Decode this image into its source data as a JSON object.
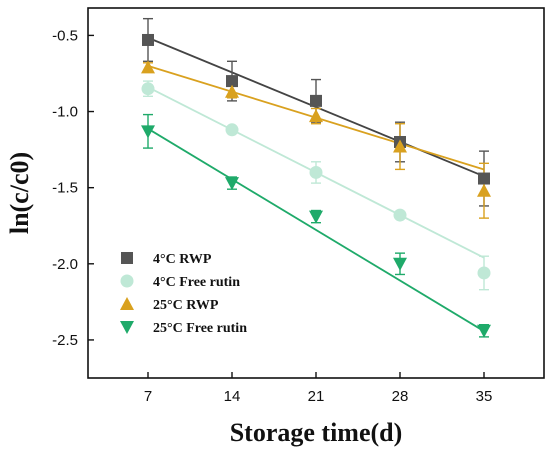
{
  "chart_data": {
    "type": "scatter",
    "xlabel": "Storage time(d)",
    "ylabel": "ln(c/c0)",
    "x": [
      7,
      14,
      21,
      28,
      35
    ],
    "xlim": [
      2,
      40
    ],
    "ylim": [
      -2.75,
      -0.32
    ],
    "xticks": [
      7,
      14,
      21,
      28,
      35
    ],
    "yticks": [
      -0.5,
      -1.0,
      -1.5,
      -2.0,
      -2.5
    ],
    "ytick_labels": [
      "-0.5",
      "-1.0",
      "-1.5",
      "-2.0",
      "-2.5"
    ],
    "grid": false,
    "legend_position": "bottom-left",
    "series": [
      {
        "name": "4°C RWP",
        "marker": "square",
        "color": "#555555",
        "line_color": "#444444",
        "values": [
          -0.53,
          -0.8,
          -0.93,
          -1.2,
          -1.44
        ],
        "errors": [
          0.14,
          0.13,
          0.14,
          0.13,
          0.18
        ],
        "fit": {
          "slope": -0.0325,
          "intercept": -0.288
        }
      },
      {
        "name": "4°C Free rutin",
        "marker": "circle",
        "color": "#bfe8d6",
        "line_color": "#bfe8d6",
        "values": [
          -0.85,
          -1.12,
          -1.4,
          -1.68,
          -2.06
        ],
        "errors": [
          0.05,
          0.02,
          0.07,
          0.02,
          0.11
        ],
        "fit": {
          "slope": -0.04,
          "intercept": -0.56
        }
      },
      {
        "name": "25°C RWP",
        "marker": "triangle-up",
        "color": "#d9a11f",
        "line_color": "#d9a11f",
        "values": [
          -0.71,
          -0.87,
          -1.03,
          -1.23,
          -1.52
        ],
        "errors": [
          0.03,
          0.04,
          0.05,
          0.15,
          0.18
        ],
        "fit": {
          "slope": -0.0243,
          "intercept": -0.53
        }
      },
      {
        "name": "25°C Free rutin",
        "marker": "triangle-down",
        "color": "#1faa6a",
        "line_color": "#1faa6a",
        "values": [
          -1.13,
          -1.47,
          -1.69,
          -2.0,
          -2.44
        ],
        "errors": [
          0.11,
          0.04,
          0.04,
          0.07,
          0.04
        ],
        "fit": {
          "slope": -0.0475,
          "intercept": -0.78
        }
      }
    ]
  }
}
